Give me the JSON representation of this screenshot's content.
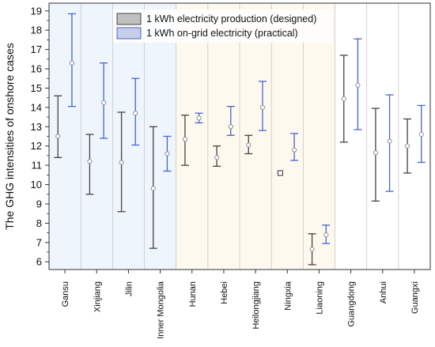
{
  "chart_data": {
    "type": "errorbar",
    "title": "",
    "ylabel": "The GHG intensities of onshore cases",
    "xlabel": "",
    "ylim": [
      5.6,
      19.4
    ],
    "yticks": [
      6,
      7,
      8,
      9,
      10,
      11,
      12,
      13,
      14,
      15,
      16,
      17,
      18,
      19
    ],
    "categories": [
      "Gansu",
      "Xinjiang",
      "Jilin",
      "Inner Mongolia",
      "Hunan",
      "Hebei",
      "Heilongjiang",
      "Ningxia",
      "Liaoning",
      "Guangdong",
      "Anhui",
      "Guangxi"
    ],
    "region_groups": [
      {
        "from": 0,
        "to": 3,
        "color": "#eef5fc"
      },
      {
        "from": 4,
        "to": 8,
        "color": "#fdf9ee"
      },
      {
        "from": 9,
        "to": 11,
        "color": "#ffffff"
      }
    ],
    "legend_position": "top-center",
    "grid": "vertical-separators",
    "series": [
      {
        "name": "1 kWh electricity production (designed)",
        "color": "#444444",
        "mean": [
          12.5,
          11.2,
          11.15,
          9.8,
          12.35,
          11.4,
          12.05,
          10.6,
          6.65,
          14.45,
          11.65,
          12.0
        ],
        "low": [
          11.4,
          9.5,
          8.6,
          6.7,
          11.0,
          10.95,
          11.6,
          10.6,
          5.85,
          12.2,
          9.15,
          10.6
        ],
        "high": [
          14.6,
          12.6,
          13.75,
          13.0,
          13.6,
          12.0,
          12.55,
          10.6,
          7.45,
          16.7,
          13.95,
          13.4
        ]
      },
      {
        "name": "1 kWh on-grid electricity (practical)",
        "color": "#4a64c8",
        "mean": [
          16.3,
          14.25,
          13.7,
          11.6,
          13.45,
          13.0,
          14.0,
          11.8,
          7.4,
          15.15,
          12.25,
          12.6
        ],
        "low": [
          14.05,
          12.4,
          12.05,
          10.7,
          13.2,
          12.55,
          12.8,
          11.25,
          6.95,
          12.85,
          9.65,
          11.15
        ],
        "high": [
          18.85,
          16.3,
          15.5,
          12.5,
          13.7,
          14.05,
          15.35,
          12.65,
          7.9,
          17.55,
          14.65,
          14.1
        ]
      }
    ]
  }
}
